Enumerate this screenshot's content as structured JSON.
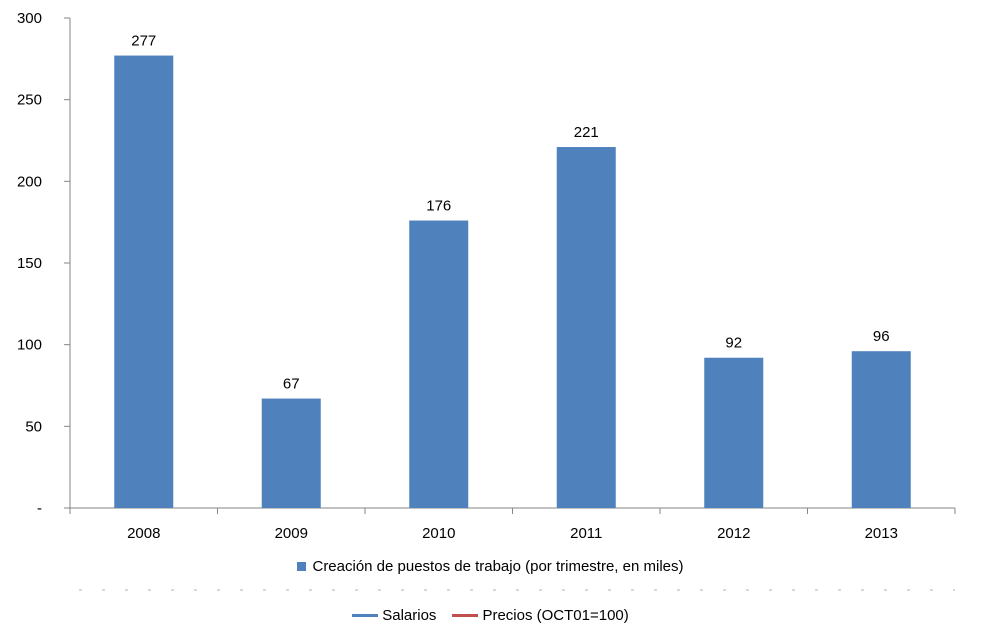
{
  "chart_data": {
    "type": "bar",
    "categories": [
      "2008",
      "2009",
      "2010",
      "2011",
      "2012",
      "2013"
    ],
    "series": [
      {
        "name": "Creación de puestos de trabajo (por trimestre, en miles)",
        "values": [
          277,
          67,
          176,
          221,
          92,
          96
        ],
        "color": "#4f81bd"
      }
    ],
    "ylim": [
      0,
      300
    ],
    "yticks": [
      0,
      50,
      100,
      150,
      200,
      250,
      300
    ],
    "ytick_labels": [
      "-",
      "50",
      "100",
      "150",
      "200",
      "250",
      "300"
    ],
    "grid": false,
    "legend_position": "bottom"
  },
  "legend2": [
    {
      "label": "Salarios",
      "color": "#4f81bd"
    },
    {
      "label": "Precios (OCT01=100)",
      "color": "#c0504d"
    }
  ]
}
